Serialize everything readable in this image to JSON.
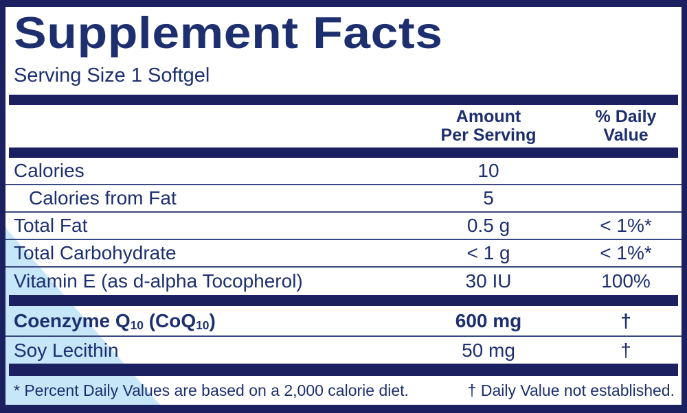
{
  "title": "Supplement Facts",
  "serving_size": "Serving Size 1 Softgel",
  "columns": {
    "amount": [
      "Amount",
      "Per Serving"
    ],
    "daily_value": [
      "% Daily",
      "Value"
    ]
  },
  "rows": [
    {
      "label": "Calories",
      "amount": "10",
      "daily_value": ""
    },
    {
      "label": "Calories from Fat",
      "amount": "5",
      "daily_value": ""
    },
    {
      "label": "Total Fat",
      "amount": "0.5 g",
      "daily_value": "< 1%*"
    },
    {
      "label": "Total Carbohydrate",
      "amount": "< 1 g",
      "daily_value": "< 1%*"
    },
    {
      "label": "Vitamin E (as d-alpha Tocopherol)",
      "amount": "30 IU",
      "daily_value": "100%"
    }
  ],
  "featured_rows": {
    "coq10": {
      "label_parts": {
        "p0": "Coenzyme Q",
        "s0": "10",
        "p1": " (CoQ",
        "s1": "10",
        "p2": ")"
      },
      "amount": "600 mg",
      "daily_value": "†"
    },
    "soy": {
      "label": "Soy Lecithin",
      "amount": "50 mg",
      "daily_value": "†"
    }
  },
  "footnotes": {
    "percent_dv": "* Percent Daily Values are based on a 2,000 calorie diet.",
    "dagger": "† Daily Value not established."
  },
  "colors": {
    "navy": "#1a2060",
    "text_navy": "#1d2f6f",
    "divider": "#39497f",
    "light_blue": "#c7e6f7",
    "background": "#ffffff"
  }
}
